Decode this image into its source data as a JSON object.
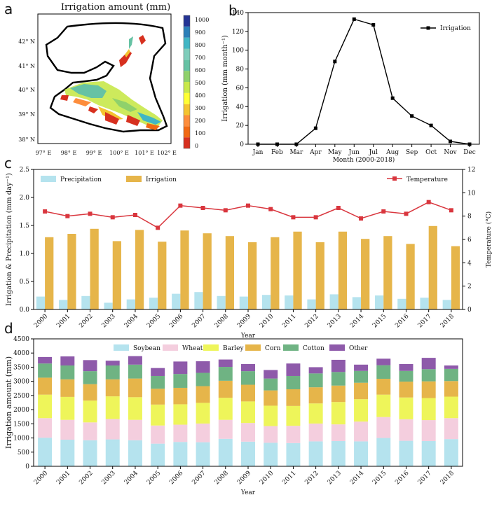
{
  "panel_labels": {
    "a": "a",
    "b": "b",
    "c": "c",
    "d": "d"
  },
  "chart_data": [
    {
      "panel": "a",
      "type": "heatmap",
      "title": "Irrigation amount (mm)",
      "x_ticks": [
        "97° E",
        "98° E",
        "99° E",
        "100° E",
        "101° E",
        "102° E"
      ],
      "y_ticks": [
        "38° N",
        "39° N",
        "40° N",
        "41° N",
        "42° N"
      ],
      "colorbar": {
        "ticks": [
          "0",
          "100",
          "200",
          "300",
          "400",
          "500",
          "600",
          "700",
          "800",
          "900",
          "1000"
        ],
        "colors": [
          "#d7301f",
          "#f16913",
          "#fd8d3c",
          "#f4c430",
          "#ffff33",
          "#c8e84a",
          "#8fd16b",
          "#66c2a4",
          "#7fcdbb",
          "#41b6c4",
          "#2c7fb8",
          "#253494"
        ]
      }
    },
    {
      "panel": "b",
      "type": "line",
      "categories": [
        "Jan",
        "Feb",
        "Mar",
        "Apr",
        "May",
        "Jun",
        "Jul",
        "Aug",
        "Sep",
        "Oct",
        "Nov",
        "Dec"
      ],
      "series": [
        {
          "name": "Irrigation",
          "values": [
            0,
            0,
            0,
            17,
            88,
            133,
            127,
            49,
            30,
            20,
            3,
            0
          ]
        }
      ],
      "xlabel": "Month (2000-2018)",
      "ylabel": "Irrigation (mm month⁻¹)",
      "ylim": [
        0,
        140
      ],
      "yticks": [
        0,
        20,
        40,
        60,
        80,
        100,
        120,
        140
      ],
      "color": "#000000"
    },
    {
      "panel": "c",
      "type": "bar",
      "categories": [
        "2000",
        "2001",
        "2002",
        "2003",
        "2004",
        "2005",
        "2006",
        "2007",
        "2008",
        "2009",
        "2010",
        "2011",
        "2012",
        "2013",
        "2014",
        "2015",
        "2016",
        "2017",
        "2018"
      ],
      "series": [
        {
          "name": "Precipitation",
          "color": "#b5e3ee",
          "values": [
            0.23,
            0.17,
            0.24,
            0.12,
            0.18,
            0.21,
            0.28,
            0.31,
            0.24,
            0.23,
            0.26,
            0.25,
            0.18,
            0.27,
            0.22,
            0.25,
            0.19,
            0.21,
            0.17
          ]
        },
        {
          "name": "Irrigation",
          "color": "#e6b54a",
          "values": [
            1.29,
            1.35,
            1.44,
            1.22,
            1.42,
            1.21,
            1.41,
            1.36,
            1.31,
            1.2,
            1.29,
            1.39,
            1.2,
            1.39,
            1.26,
            1.31,
            1.17,
            1.49,
            1.13
          ]
        }
      ],
      "line_series": {
        "name": "Temperature",
        "color": "#d9363e",
        "values": [
          8.4,
          8.0,
          8.2,
          7.9,
          8.1,
          7.0,
          8.9,
          8.7,
          8.5,
          8.9,
          8.6,
          7.9,
          7.9,
          8.7,
          7.8,
          8.4,
          8.2,
          9.2,
          8.5
        ]
      },
      "xlabel": "Year",
      "ylabel": "Irrigation & Precipitation (mm day⁻¹)",
      "ylim": [
        0,
        2.5
      ],
      "yticks": [
        0,
        0.5,
        1.0,
        1.5,
        2.0,
        2.5
      ],
      "ytick_labels": [
        "0.0",
        "0.5",
        "1.0",
        "1.5",
        "2.0",
        "2.5"
      ],
      "ylabel_right": "Temperature (°C)",
      "ylim_right": [
        0,
        12
      ],
      "yticks_right": [
        0,
        2,
        4,
        6,
        8,
        10,
        12
      ]
    },
    {
      "panel": "d",
      "type": "bar",
      "stacked": true,
      "categories": [
        "2000",
        "2001",
        "2002",
        "2003",
        "2004",
        "2005",
        "2006",
        "2007",
        "2008",
        "2009",
        "2010",
        "2011",
        "2012",
        "2013",
        "2014",
        "2015",
        "2016",
        "2017",
        "2018"
      ],
      "series": [
        {
          "name": "Soybean",
          "color": "#b5e3ee",
          "values": [
            1010,
            940,
            920,
            950,
            920,
            800,
            860,
            850,
            970,
            870,
            830,
            820,
            880,
            890,
            880,
            1000,
            900,
            890,
            960
          ]
        },
        {
          "name": "Wheat",
          "color": "#f4cede",
          "values": [
            690,
            700,
            630,
            720,
            720,
            640,
            610,
            660,
            670,
            660,
            590,
            610,
            630,
            590,
            700,
            740,
            760,
            740,
            740
          ]
        },
        {
          "name": "Barley",
          "color": "#eef55a",
          "values": [
            830,
            810,
            770,
            800,
            800,
            740,
            720,
            730,
            780,
            760,
            720,
            700,
            710,
            790,
            790,
            790,
            770,
            780,
            760
          ]
        },
        {
          "name": "Corn",
          "color": "#e6b54a",
          "values": [
            600,
            620,
            580,
            600,
            660,
            560,
            580,
            590,
            600,
            590,
            540,
            590,
            570,
            580,
            580,
            560,
            560,
            590,
            550
          ]
        },
        {
          "name": "Cotton",
          "color": "#6fb383",
          "values": [
            500,
            490,
            460,
            490,
            490,
            450,
            490,
            470,
            490,
            480,
            420,
            470,
            490,
            480,
            420,
            480,
            380,
            430,
            430
          ]
        },
        {
          "name": "Other",
          "color": "#8e5aaa",
          "values": [
            230,
            320,
            390,
            170,
            300,
            280,
            440,
            410,
            260,
            250,
            300,
            440,
            220,
            430,
            220,
            230,
            240,
            400,
            120
          ]
        }
      ],
      "xlabel": "Year",
      "ylabel": "Irrigation amount (mm)",
      "ylim": [
        0,
        4500
      ],
      "yticks": [
        0,
        500,
        1000,
        1500,
        2000,
        2500,
        3000,
        3500,
        4000,
        4500
      ]
    }
  ]
}
